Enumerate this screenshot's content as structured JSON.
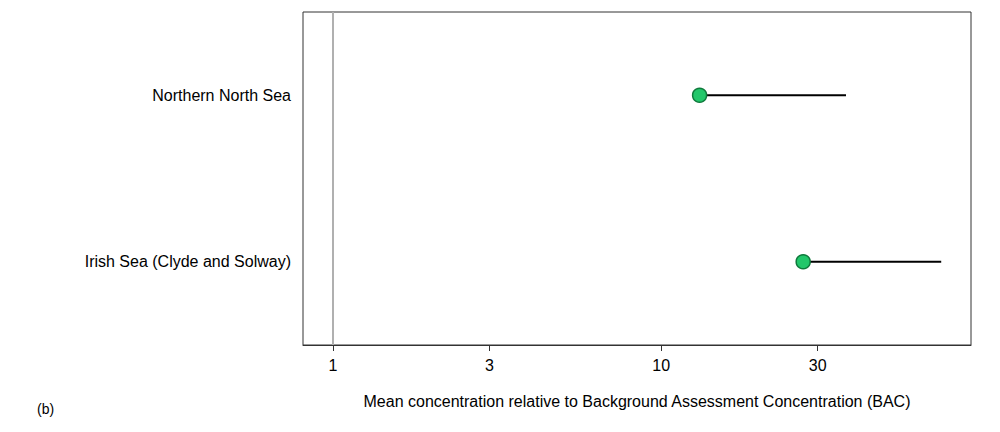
{
  "chart_data": {
    "type": "scatter",
    "categories": [
      "Northern North Sea",
      "Irish Sea (Clyde and Solway)"
    ],
    "values": [
      13.1,
      27.1
    ],
    "upper": [
      36.6,
      71.4
    ],
    "color": "#22c76a",
    "marker": "circle",
    "xlabel": "Mean concentration relative to Background Assessment Concentration (BAC)",
    "panel_label": "(b)",
    "reference_x": 1,
    "xlim": [
      0.81,
      88
    ],
    "xticks": [
      1,
      3,
      10,
      30
    ],
    "log": "x",
    "grid": false
  }
}
